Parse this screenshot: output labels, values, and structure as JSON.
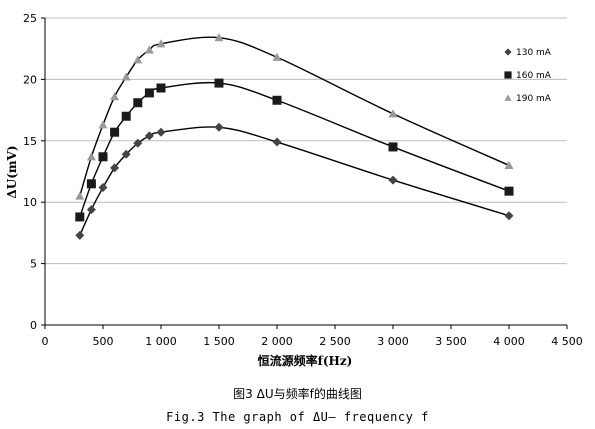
{
  "chart_data": {
    "type": "line",
    "xlabel": "恒流源频率f(Hz)",
    "ylabel": "ΔU(mV)",
    "xlim": [
      0,
      4500
    ],
    "ylim": [
      0,
      25
    ],
    "xticks": [
      0,
      500,
      1000,
      1500,
      2000,
      2500,
      3000,
      3500,
      4000,
      4500
    ],
    "xtick_labels": [
      "0",
      "500",
      "1 000",
      "1 500",
      "2 000",
      "2 500",
      "3 000",
      "3 500",
      "4 000",
      "4 500"
    ],
    "yticks": [
      0,
      5,
      10,
      15,
      20,
      25
    ],
    "ytick_labels": [
      "0",
      "5",
      "10",
      "15",
      "20",
      "25"
    ],
    "grid": "horizontal",
    "legend_position": "right",
    "series": [
      {
        "name": "130 mA",
        "marker": "diamond",
        "color": "#444444",
        "x": [
          300,
          400,
          500,
          600,
          700,
          800,
          900,
          1000,
          1500,
          2000,
          3000,
          4000
        ],
        "y": [
          7.3,
          9.4,
          11.2,
          12.8,
          13.9,
          14.8,
          15.4,
          15.7,
          16.1,
          14.9,
          11.8,
          8.9
        ]
      },
      {
        "name": "160 mA",
        "marker": "square",
        "color": "#1a1a1a",
        "x": [
          300,
          400,
          500,
          600,
          700,
          800,
          900,
          1000,
          1500,
          2000,
          3000,
          4000
        ],
        "y": [
          8.8,
          11.5,
          13.7,
          15.7,
          17.0,
          18.1,
          18.9,
          19.3,
          19.7,
          18.3,
          14.5,
          10.9
        ]
      },
      {
        "name": "190 mA",
        "marker": "triangle",
        "color": "#999999",
        "x": [
          300,
          400,
          500,
          600,
          700,
          800,
          900,
          1000,
          1500,
          2000,
          3000,
          4000
        ],
        "y": [
          10.5,
          13.7,
          16.3,
          18.6,
          20.2,
          21.6,
          22.4,
          22.9,
          23.4,
          21.8,
          17.2,
          13.0
        ]
      }
    ]
  },
  "caption": {
    "cn": "图3   ΔU与频率f的曲线图",
    "en": "Fig.3   The graph of ΔU— frequency f"
  }
}
